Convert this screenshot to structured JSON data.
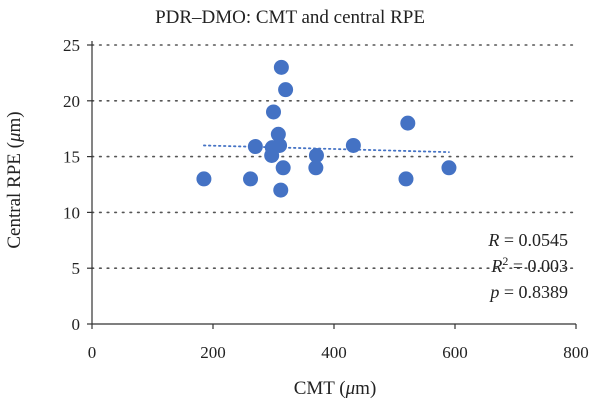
{
  "chart_data": {
    "type": "scatter",
    "title": "PDR–DMO: CMT and central RPE",
    "xlabel": {
      "prefix": "CMT (",
      "unit_symbol": "μ",
      "suffix": "m)"
    },
    "ylabel": {
      "prefix": "Central RPE (",
      "unit_symbol": "μ",
      "suffix": "m)"
    },
    "xlim": [
      0,
      800
    ],
    "ylim": [
      0,
      25
    ],
    "x_ticks": [
      0,
      200,
      400,
      600,
      800
    ],
    "y_ticks": [
      0,
      5,
      10,
      15,
      20,
      25
    ],
    "grid": {
      "horizontal": "dotted",
      "vertical": false
    },
    "marker_color": "#4472c4",
    "trendline": {
      "type": "linear",
      "style": "dotted",
      "color": "#4472c4",
      "x": [
        185,
        590
      ],
      "y": [
        16.0,
        15.4
      ]
    },
    "points": [
      {
        "x": 185,
        "y": 13
      },
      {
        "x": 262,
        "y": 13
      },
      {
        "x": 270,
        "y": 15.9
      },
      {
        "x": 297,
        "y": 15.1
      },
      {
        "x": 298,
        "y": 15.8
      },
      {
        "x": 300,
        "y": 19
      },
      {
        "x": 308,
        "y": 17
      },
      {
        "x": 310,
        "y": 16
      },
      {
        "x": 312,
        "y": 12
      },
      {
        "x": 313,
        "y": 23
      },
      {
        "x": 316,
        "y": 14
      },
      {
        "x": 320,
        "y": 21
      },
      {
        "x": 370,
        "y": 14
      },
      {
        "x": 371,
        "y": 15.1
      },
      {
        "x": 432,
        "y": 16
      },
      {
        "x": 519,
        "y": 13
      },
      {
        "x": 522,
        "y": 18
      },
      {
        "x": 590,
        "y": 14
      }
    ],
    "stats": {
      "r_symbol": "R",
      "r_value": " = 0.0545",
      "r2_symbol": "R",
      "r2_sup": "2",
      "r2_value": " = 0.003",
      "p_symbol": "p",
      "p_value": " = 0.8389"
    }
  }
}
